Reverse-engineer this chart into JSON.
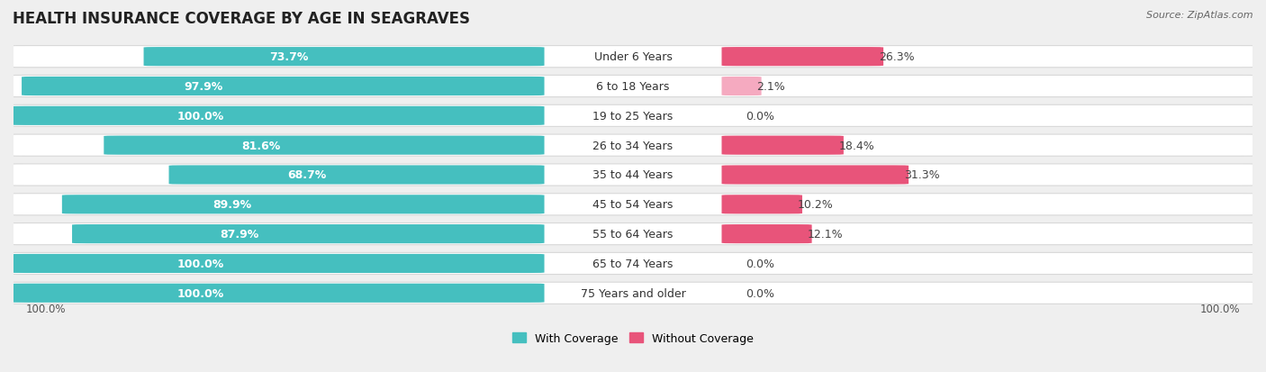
{
  "title": "HEALTH INSURANCE COVERAGE BY AGE IN SEAGRAVES",
  "source": "Source: ZipAtlas.com",
  "categories": [
    "Under 6 Years",
    "6 to 18 Years",
    "19 to 25 Years",
    "26 to 34 Years",
    "35 to 44 Years",
    "45 to 54 Years",
    "55 to 64 Years",
    "65 to 74 Years",
    "75 Years and older"
  ],
  "with_coverage": [
    73.7,
    97.9,
    100.0,
    81.6,
    68.7,
    89.9,
    87.9,
    100.0,
    100.0
  ],
  "without_coverage": [
    26.3,
    2.1,
    0.0,
    18.4,
    31.3,
    10.2,
    12.1,
    0.0,
    0.0
  ],
  "color_with": "#45bfbf",
  "color_without_high": "#e8547a",
  "color_without_low": "#f5aac0",
  "background_color": "#efefef",
  "title_fontsize": 12,
  "label_fontsize": 9,
  "legend_with": "With Coverage",
  "legend_without": "Without Coverage"
}
